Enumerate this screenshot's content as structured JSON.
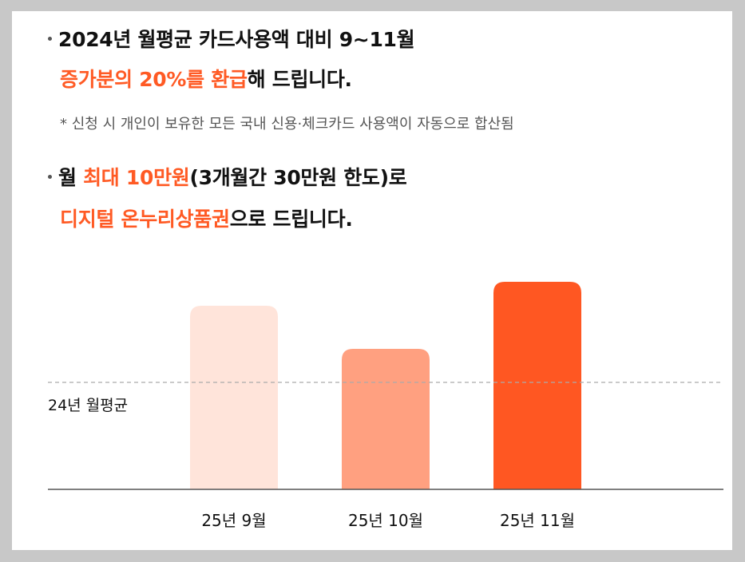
{
  "section1": {
    "line1": "2024년 월평균 카드사용액 대비 9~11월",
    "line2_accent": "증가분의 20%를 환급",
    "line2_rest": "해 드립니다.",
    "note": "* 신청 시 개인이 보유한 모든 국내 신용·체크카드 사용액이 자동으로 합산됨"
  },
  "section2": {
    "line1_pre": "월 ",
    "line1_accent": "최대 10만원",
    "line1_rest": "(3개월간 30만원 한도)로",
    "line2_accent": "디지털 온누리상품권",
    "line2_rest": "으로 드립니다."
  },
  "chart_data": {
    "type": "bar",
    "categories": [
      "25년 9월",
      "25년 10월",
      "25년 11월"
    ],
    "values": [
      115,
      88,
      130
    ],
    "reference_line": {
      "label": "24년 월평균",
      "value": 67,
      "style": "dashed"
    },
    "ylim": [
      0,
      140
    ],
    "title": "",
    "xlabel": "",
    "ylabel": "",
    "grid": false,
    "colors": [
      "#ffe4da",
      "#ffa080",
      "#ff5722"
    ],
    "baseline_color": "#555555",
    "reference_color": "#aaaaaa"
  },
  "colors": {
    "accent": "#ff5a24",
    "background": "#c8c8c8",
    "card": "#ffffff"
  }
}
